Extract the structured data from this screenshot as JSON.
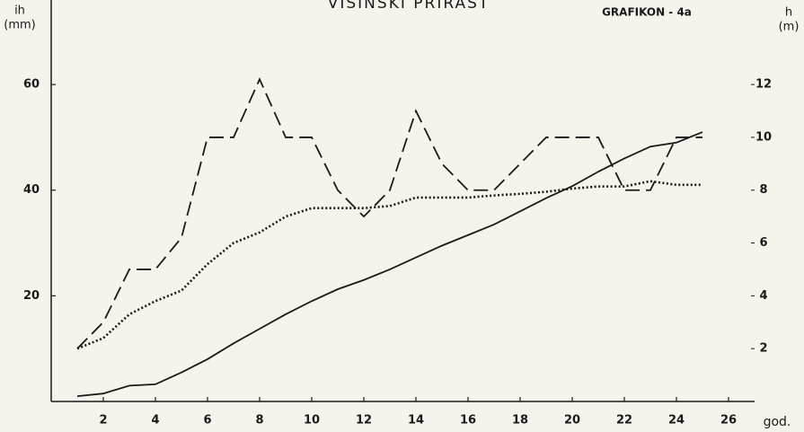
{
  "chart_data": {
    "type": "line",
    "title": "VISINSKI PRIRAST",
    "annotation": "GRAFIKON - 4a",
    "ylabel": [
      "ih",
      "(mm)"
    ],
    "y2label": [
      "h",
      "(m)"
    ],
    "xlabel": "god.",
    "x": [
      1,
      2,
      3,
      4,
      5,
      6,
      7,
      8,
      9,
      10,
      11,
      12,
      13,
      14,
      15,
      16,
      17,
      18,
      19,
      20,
      21,
      22,
      23,
      24,
      25
    ],
    "series": [
      {
        "color": "#1a1a1a",
        "style": "dashed",
        "axis": "y",
        "values": [
          10,
          15,
          25,
          25,
          31,
          50,
          50,
          61,
          50,
          50,
          40,
          35,
          40,
          55,
          45,
          40,
          40,
          45,
          50,
          50,
          50,
          40,
          40,
          50,
          50
        ]
      },
      {
        "color": "#1a1a1a",
        "style": "dotted",
        "axis": "y",
        "values": [
          10,
          12,
          16.5,
          19,
          21,
          26,
          30,
          32,
          35,
          36.6,
          36.6,
          36.6,
          37,
          38.6,
          38.6,
          38.6,
          39,
          39.3,
          39.7,
          40.3,
          40.7,
          40.7,
          41.7,
          41,
          41
        ]
      },
      {
        "color": "#1a1a1a",
        "style": "solid",
        "axis": "y2",
        "values": [
          0.2,
          0.3,
          0.6,
          0.65,
          1.1,
          1.6,
          2.2,
          2.75,
          3.3,
          3.8,
          4.25,
          4.6,
          5,
          5.45,
          5.9,
          6.3,
          6.7,
          7.2,
          7.7,
          8.15,
          8.7,
          9.2,
          9.65,
          9.8,
          10.2
        ]
      }
    ],
    "xlim": [
      0,
      27
    ],
    "xticks": [
      2,
      4,
      6,
      8,
      10,
      12,
      14,
      16,
      18,
      20,
      22,
      24,
      26
    ],
    "ylim": [
      0,
      76
    ],
    "yticks": [
      20,
      40,
      60
    ],
    "y2lim": [
      0,
      15.2
    ],
    "y2ticks": [
      2,
      4,
      6,
      8,
      10,
      12
    ]
  }
}
